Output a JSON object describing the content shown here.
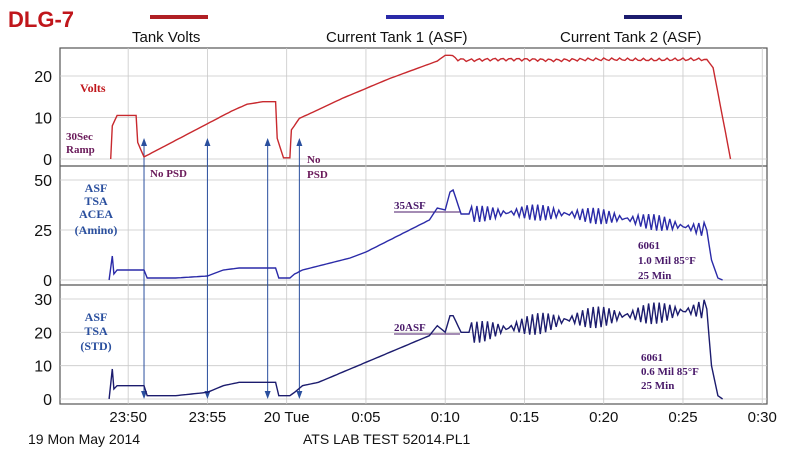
{
  "tag": "DLG-7",
  "legend": [
    {
      "label": "Tank Volts",
      "color": "#b01f24"
    },
    {
      "label": "Current Tank 1 (ASF)",
      "color": "#2a2aa8"
    },
    {
      "label": "Current Tank 2 (ASF)",
      "color": "#1c1c6e"
    }
  ],
  "footer": {
    "left": "19 Mon May 2014",
    "center": "ATS LAB TEST 52014.PL1"
  },
  "chart_data": [
    {
      "type": "line",
      "name": "volts-panel",
      "ylabel": "Volts",
      "ylabel_color": "#c0161b",
      "ylim": [
        0,
        25
      ],
      "yticks": [
        "0",
        "10",
        "20"
      ],
      "ytick_values": [
        0,
        10,
        20
      ],
      "notes": [
        {
          "text": "30Sec",
          "color": "#6a1a5a"
        },
        {
          "text": "Ramp",
          "color": "#6a1a5a"
        },
        {
          "text": "No PSD",
          "color": "#6a1a5a"
        },
        {
          "text": "No",
          "color": "#6a1a5a"
        },
        {
          "text": "PSD",
          "color": "#6a1a5a"
        }
      ],
      "series": [
        {
          "color": "#c8292e",
          "x": [
            48.9,
            49.0,
            49.3,
            50.5,
            50.6,
            51.0,
            51.5,
            52.5,
            53.5,
            54.5,
            55.5,
            56.5,
            57.5,
            58.5,
            59.3,
            59.4,
            59.8,
            60.2,
            60.3,
            60.8,
            61.5,
            62.5,
            63.5,
            64.5,
            65.5,
            66.5,
            67.5,
            68.5,
            69.5,
            70.0,
            70.3,
            70.8,
            71.5,
            73.0,
            75.0,
            77.0,
            79.0,
            81.0,
            83.0,
            85.0,
            86.5,
            86.9,
            87.5,
            88.0
          ],
          "y": [
            0,
            8,
            10.5,
            10.5,
            4,
            0.5,
            1.5,
            3.5,
            5.5,
            7.5,
            9.5,
            11.5,
            13.2,
            13.8,
            13.8,
            5,
            0.3,
            0.3,
            7,
            9.8,
            11,
            12.8,
            14.6,
            16.2,
            17.8,
            19.4,
            20.8,
            22.2,
            23.6,
            25.0,
            25.0,
            24.0,
            23.8,
            24.0,
            24.0,
            23.8,
            24.0,
            24.0,
            23.9,
            24.0,
            24.0,
            22,
            10,
            0
          ]
        }
      ]
    },
    {
      "type": "line",
      "name": "tank1-panel",
      "ylabel": "ASF TSA ACEA (Amino)",
      "ylabel_lines": [
        "ASF",
        "TSA",
        "ACEA",
        "(Amino)"
      ],
      "ylabel_color": "#2a4f9e",
      "ylim": [
        0,
        50
      ],
      "yticks": [
        "0",
        "25",
        "50"
      ],
      "ytick_values": [
        0,
        25,
        50
      ],
      "notes": [
        {
          "text": "35ASF",
          "color": "#4a1a6a"
        },
        {
          "text": "6061",
          "color": "#4a1a6a"
        },
        {
          "text": "1.0 Mil 85°F",
          "color": "#4a1a6a"
        },
        {
          "text": "25 Min",
          "color": "#4a1a6a"
        }
      ],
      "series": [
        {
          "color": "#2a2aa8",
          "x": [
            48.8,
            49.0,
            49.1,
            49.3,
            51.0,
            51.2,
            53.0,
            55.0,
            56.0,
            57.0,
            58.5,
            59.3,
            59.5,
            60.2,
            60.5,
            61.0,
            62.0,
            63.0,
            64.0,
            65.0,
            66.0,
            67.0,
            68.0,
            69.0,
            69.5,
            70.0,
            70.3,
            70.5,
            71.0,
            72.0,
            75.0,
            78.0,
            81.0,
            84.0,
            86.5,
            86.8,
            87.2,
            87.5
          ],
          "y": [
            0,
            12,
            3,
            5,
            5,
            1,
            1,
            2,
            5,
            6,
            6,
            6,
            1,
            1,
            3,
            5,
            7,
            9,
            11,
            14,
            18,
            22,
            26,
            30,
            36,
            35,
            44,
            45,
            33,
            33,
            34,
            33,
            31,
            28,
            25,
            10,
            1,
            0
          ]
        }
      ]
    },
    {
      "type": "line",
      "name": "tank2-panel",
      "ylabel": "ASF TSA (STD)",
      "ylabel_lines": [
        "ASF",
        "TSA",
        "(STD)"
      ],
      "ylabel_color": "#2a4f9e",
      "ylim": [
        0,
        32
      ],
      "yticks": [
        "0",
        "10",
        "20",
        "30"
      ],
      "ytick_values": [
        0,
        10,
        20,
        30
      ],
      "notes": [
        {
          "text": "20ASF",
          "color": "#4a1a6a"
        },
        {
          "text": "6061",
          "color": "#4a1a6a"
        },
        {
          "text": "0.6 Mil 85°F",
          "color": "#4a1a6a"
        },
        {
          "text": "25 Min",
          "color": "#4a1a6a"
        }
      ],
      "series": [
        {
          "color": "#1c1c6e",
          "x": [
            48.8,
            49.0,
            49.1,
            49.3,
            51.0,
            51.2,
            53.0,
            55.0,
            56.0,
            57.0,
            58.5,
            59.3,
            59.5,
            60.2,
            60.5,
            61.0,
            62.0,
            63.0,
            64.0,
            65.0,
            66.0,
            67.0,
            68.0,
            69.0,
            69.5,
            70.0,
            70.3,
            70.5,
            71.0,
            72.0,
            75.0,
            78.0,
            81.0,
            84.0,
            86.5,
            86.8,
            87.2,
            87.5
          ],
          "y": [
            0,
            9,
            3,
            4,
            4,
            1,
            1,
            2,
            4,
            5,
            5,
            5,
            1,
            1,
            2,
            4,
            5,
            7,
            9,
            11,
            13,
            15,
            17,
            19,
            22,
            20,
            25,
            25,
            20,
            20,
            22,
            24,
            25,
            26,
            27,
            10,
            1,
            0
          ]
        }
      ]
    }
  ],
  "x_axis": {
    "xlim": [
      45.7,
      90.3
    ],
    "ticks": [
      "23:50",
      "23:55",
      "20 Tue",
      "0:05",
      "0:10",
      "0:15",
      "0:20",
      "0:25",
      "0:30"
    ],
    "tick_values": [
      50,
      55,
      60,
      65,
      70,
      75,
      80,
      85,
      90
    ]
  }
}
